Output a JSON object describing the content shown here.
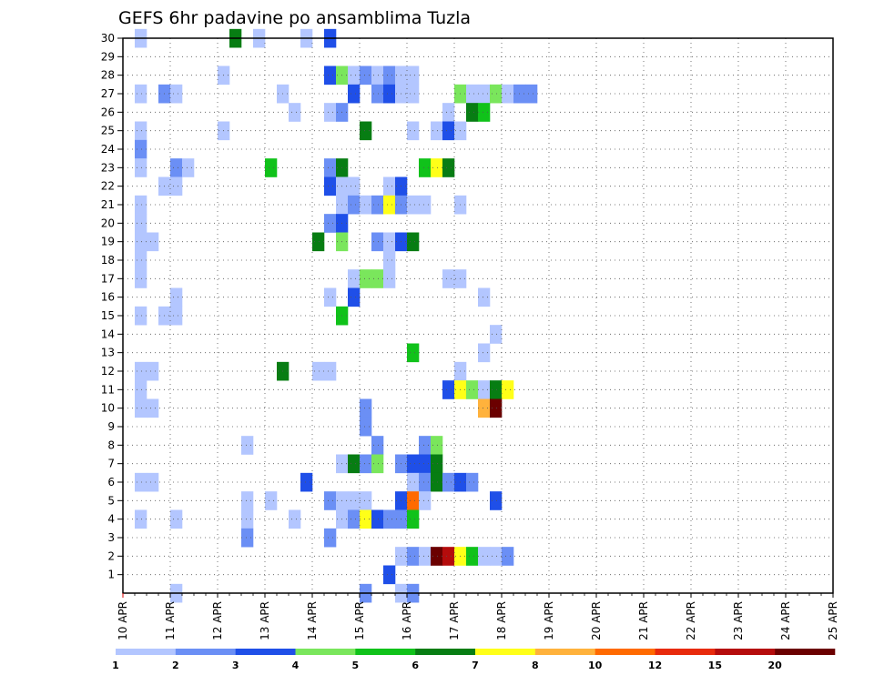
{
  "chart_data": {
    "type": "heatmap",
    "title": "GEFS 6hr padavine po ansamblima Tuzla",
    "x_tick_labels": [
      "10 APR",
      "11 APR",
      "12 APR",
      "13 APR",
      "14 APR",
      "15 APR",
      "16 APR",
      "17 APR",
      "18 APR",
      "19 APR",
      "20 APR",
      "21 APR",
      "22 APR",
      "23 APR",
      "24 APR",
      "25 APR"
    ],
    "y_tick_labels": [
      "1",
      "2",
      "3",
      "4",
      "5",
      "6",
      "7",
      "8",
      "9",
      "10",
      "11",
      "12",
      "13",
      "14",
      "15",
      "16",
      "17",
      "18",
      "19",
      "20",
      "21",
      "22",
      "23",
      "24",
      "25",
      "26",
      "27",
      "28",
      "29",
      "30"
    ],
    "x_steps_per_day": 4,
    "grid": true,
    "legend_placement": "bottom",
    "legend": {
      "labels": [
        "1",
        "2",
        "3",
        "4",
        "5",
        "6",
        "7",
        "8",
        "10",
        "12",
        "15",
        "20"
      ],
      "colors": [
        "#b3c6ff",
        "#6b8ff5",
        "#1f4fe8",
        "#7ae65c",
        "#10c21a",
        "#077d13",
        "#ffff18",
        "#ffb23c",
        "#ff6a00",
        "#e82a0c",
        "#b50c0c",
        "#6b0000"
      ]
    },
    "cells": [
      [
        30,
        1,
        0
      ],
      [
        30,
        9,
        5
      ],
      [
        30,
        11,
        0
      ],
      [
        30,
        15,
        0
      ],
      [
        30,
        17,
        2
      ],
      [
        28,
        8,
        0
      ],
      [
        28,
        17,
        2
      ],
      [
        28,
        18,
        3
      ],
      [
        28,
        19,
        0
      ],
      [
        28,
        20,
        1
      ],
      [
        28,
        21,
        0
      ],
      [
        28,
        22,
        1
      ],
      [
        28,
        23,
        0
      ],
      [
        28,
        24,
        0
      ],
      [
        27,
        1,
        0
      ],
      [
        27,
        3,
        1
      ],
      [
        27,
        4,
        0
      ],
      [
        27,
        13,
        0
      ],
      [
        27,
        19,
        2
      ],
      [
        27,
        21,
        1
      ],
      [
        27,
        22,
        2
      ],
      [
        27,
        23,
        0
      ],
      [
        27,
        24,
        0
      ],
      [
        27,
        28,
        3
      ],
      [
        27,
        29,
        0
      ],
      [
        27,
        30,
        0
      ],
      [
        27,
        31,
        3
      ],
      [
        27,
        32,
        0
      ],
      [
        27,
        33,
        1
      ],
      [
        27,
        34,
        1
      ],
      [
        26,
        14,
        0
      ],
      [
        26,
        17,
        0
      ],
      [
        26,
        18,
        1
      ],
      [
        26,
        27,
        0
      ],
      [
        26,
        29,
        5
      ],
      [
        26,
        30,
        4
      ],
      [
        25,
        1,
        0
      ],
      [
        25,
        8,
        0
      ],
      [
        25,
        20,
        5
      ],
      [
        25,
        24,
        0
      ],
      [
        25,
        26,
        0
      ],
      [
        25,
        27,
        2
      ],
      [
        25,
        28,
        0
      ],
      [
        24,
        1,
        1
      ],
      [
        23,
        1,
        0
      ],
      [
        23,
        4,
        1
      ],
      [
        23,
        5,
        0
      ],
      [
        23,
        12,
        4
      ],
      [
        23,
        17,
        1
      ],
      [
        23,
        18,
        5
      ],
      [
        23,
        25,
        4
      ],
      [
        23,
        26,
        6
      ],
      [
        23,
        27,
        5
      ],
      [
        22,
        3,
        0
      ],
      [
        22,
        4,
        0
      ],
      [
        22,
        17,
        2
      ],
      [
        22,
        18,
        0
      ],
      [
        22,
        19,
        0
      ],
      [
        22,
        22,
        0
      ],
      [
        22,
        23,
        2
      ],
      [
        21,
        1,
        0
      ],
      [
        21,
        18,
        0
      ],
      [
        21,
        19,
        1
      ],
      [
        21,
        20,
        0
      ],
      [
        21,
        21,
        1
      ],
      [
        21,
        22,
        6
      ],
      [
        21,
        23,
        1
      ],
      [
        21,
        24,
        0
      ],
      [
        21,
        25,
        0
      ],
      [
        21,
        28,
        0
      ],
      [
        20,
        1,
        0
      ],
      [
        20,
        17,
        1
      ],
      [
        20,
        18,
        2
      ],
      [
        19,
        1,
        0
      ],
      [
        19,
        2,
        0
      ],
      [
        19,
        16,
        5
      ],
      [
        19,
        18,
        3
      ],
      [
        19,
        21,
        1
      ],
      [
        19,
        22,
        0
      ],
      [
        19,
        23,
        2
      ],
      [
        19,
        24,
        5
      ],
      [
        18,
        1,
        0
      ],
      [
        18,
        22,
        0
      ],
      [
        17,
        1,
        0
      ],
      [
        17,
        19,
        0
      ],
      [
        17,
        20,
        3
      ],
      [
        17,
        21,
        3
      ],
      [
        17,
        22,
        0
      ],
      [
        17,
        27,
        0
      ],
      [
        17,
        28,
        0
      ],
      [
        16,
        4,
        0
      ],
      [
        16,
        17,
        0
      ],
      [
        16,
        19,
        2
      ],
      [
        16,
        30,
        0
      ],
      [
        15,
        1,
        0
      ],
      [
        15,
        3,
        0
      ],
      [
        15,
        4,
        0
      ],
      [
        15,
        18,
        4
      ],
      [
        14,
        31,
        0
      ],
      [
        13,
        24,
        4
      ],
      [
        13,
        30,
        0
      ],
      [
        12,
        1,
        0
      ],
      [
        12,
        2,
        0
      ],
      [
        12,
        13,
        5
      ],
      [
        12,
        16,
        0
      ],
      [
        12,
        17,
        0
      ],
      [
        12,
        28,
        0
      ],
      [
        11,
        1,
        0
      ],
      [
        11,
        27,
        2
      ],
      [
        11,
        28,
        6
      ],
      [
        11,
        29,
        3
      ],
      [
        11,
        30,
        0
      ],
      [
        11,
        31,
        5
      ],
      [
        11,
        32,
        6
      ],
      [
        10,
        1,
        0
      ],
      [
        10,
        2,
        0
      ],
      [
        10,
        20,
        1
      ],
      [
        10,
        30,
        7
      ],
      [
        10,
        31,
        11
      ],
      [
        9,
        20,
        1
      ],
      [
        8,
        10,
        0
      ],
      [
        8,
        21,
        1
      ],
      [
        8,
        25,
        1
      ],
      [
        8,
        26,
        3
      ],
      [
        7,
        18,
        0
      ],
      [
        7,
        19,
        5
      ],
      [
        7,
        20,
        1
      ],
      [
        7,
        21,
        3
      ],
      [
        7,
        23,
        1
      ],
      [
        7,
        24,
        2
      ],
      [
        7,
        25,
        2
      ],
      [
        7,
        26,
        5
      ],
      [
        6,
        1,
        0
      ],
      [
        6,
        2,
        0
      ],
      [
        6,
        15,
        2
      ],
      [
        6,
        24,
        0
      ],
      [
        6,
        25,
        1
      ],
      [
        6,
        26,
        5
      ],
      [
        6,
        27,
        1
      ],
      [
        6,
        28,
        2
      ],
      [
        6,
        29,
        1
      ],
      [
        5,
        10,
        0
      ],
      [
        5,
        12,
        0
      ],
      [
        5,
        17,
        1
      ],
      [
        5,
        18,
        0
      ],
      [
        5,
        19,
        0
      ],
      [
        5,
        20,
        0
      ],
      [
        5,
        23,
        2
      ],
      [
        5,
        24,
        8
      ],
      [
        5,
        25,
        0
      ],
      [
        5,
        31,
        2
      ],
      [
        4,
        1,
        0
      ],
      [
        4,
        4,
        0
      ],
      [
        4,
        10,
        0
      ],
      [
        4,
        14,
        0
      ],
      [
        4,
        18,
        0
      ],
      [
        4,
        19,
        1
      ],
      [
        4,
        20,
        6
      ],
      [
        4,
        21,
        2
      ],
      [
        4,
        22,
        1
      ],
      [
        4,
        23,
        1
      ],
      [
        4,
        24,
        4
      ],
      [
        3,
        10,
        1
      ],
      [
        3,
        17,
        1
      ],
      [
        2,
        23,
        0
      ],
      [
        2,
        24,
        1
      ],
      [
        2,
        25,
        0
      ],
      [
        2,
        26,
        11
      ],
      [
        2,
        27,
        10
      ],
      [
        2,
        28,
        6
      ],
      [
        2,
        29,
        4
      ],
      [
        2,
        30,
        0
      ],
      [
        2,
        31,
        0
      ],
      [
        2,
        32,
        1
      ],
      [
        1,
        22,
        2
      ],
      [
        0,
        4,
        0
      ],
      [
        0,
        20,
        1
      ],
      [
        0,
        23,
        0
      ],
      [
        0,
        24,
        1
      ]
    ]
  }
}
